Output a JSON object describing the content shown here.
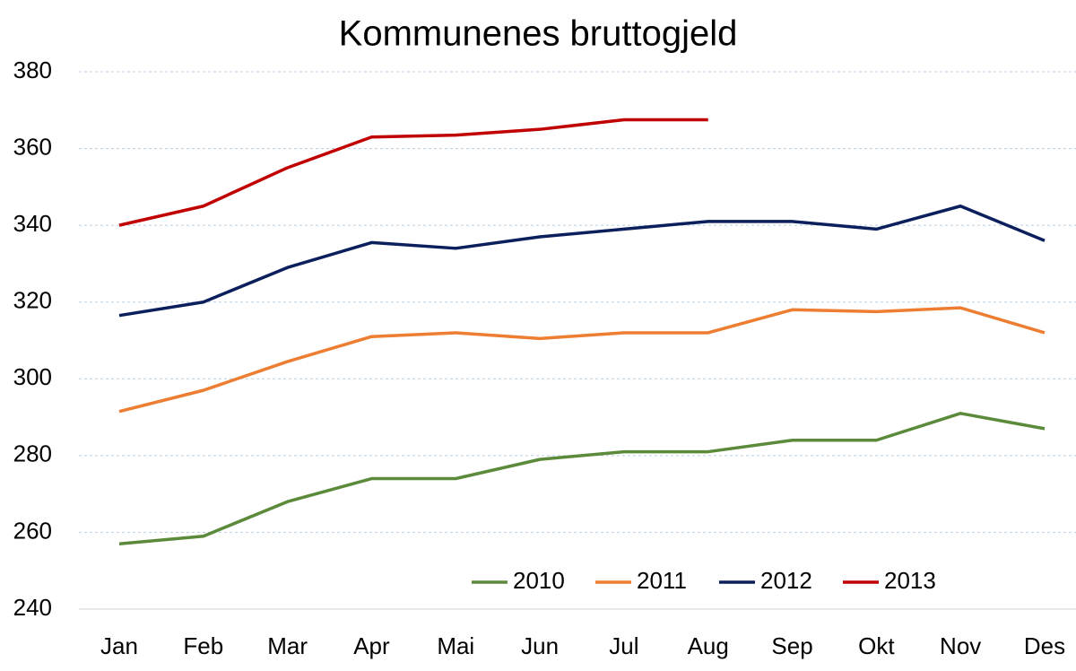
{
  "chart_data": {
    "type": "line",
    "title": "Kommunenes bruttogjeld",
    "categories": [
      "Jan",
      "Feb",
      "Mar",
      "Apr",
      "Mai",
      "Jun",
      "Jul",
      "Aug",
      "Sep",
      "Okt",
      "Nov",
      "Des"
    ],
    "series": [
      {
        "name": "2010",
        "color": "#5b8a3a",
        "values": [
          257,
          259,
          268,
          274,
          274,
          279,
          281,
          281,
          284,
          284,
          291,
          287
        ]
      },
      {
        "name": "2011",
        "color": "#ed7d31",
        "values": [
          291.5,
          297,
          304.5,
          311,
          312,
          310.5,
          312,
          312,
          318,
          317.5,
          318.5,
          312
        ]
      },
      {
        "name": "2012",
        "color": "#0b1f5c",
        "values": [
          316.5,
          320,
          329,
          335.5,
          334,
          337,
          339,
          341,
          341,
          339,
          345,
          336
        ]
      },
      {
        "name": "2013",
        "color": "#c00000",
        "values": [
          340,
          345,
          355,
          363,
          363.5,
          365,
          367.5,
          367.5,
          null,
          null,
          null,
          null
        ]
      }
    ],
    "ylim": [
      240,
      380
    ],
    "yticks": [
      240,
      260,
      280,
      300,
      320,
      340,
      360,
      380
    ],
    "grid": true,
    "legend": "bottom"
  }
}
